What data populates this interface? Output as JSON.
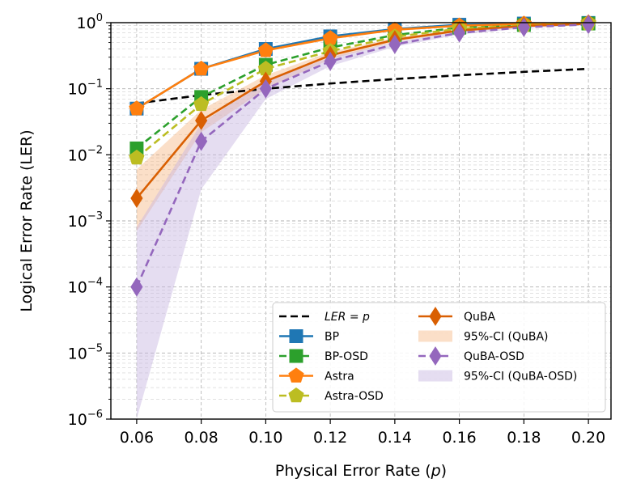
{
  "chart_data": {
    "type": "line",
    "xlabel": "Physical Error Rate (p)",
    "ylabel": "Logical Error Rate (LER)",
    "x": [
      0.06,
      0.08,
      0.1,
      0.12,
      0.14,
      0.16,
      0.18,
      0.2
    ],
    "x_tick_labels": [
      "0.06",
      "0.08",
      "0.10",
      "0.12",
      "0.14",
      "0.16",
      "0.18",
      "0.20"
    ],
    "xlim": [
      0.052,
      0.207
    ],
    "ylim": [
      1e-06,
      1
    ],
    "yscale": "log",
    "y_tick_labels": [
      {
        "base": "10",
        "exp": "−6",
        "value": 1e-06
      },
      {
        "base": "10",
        "exp": "−5",
        "value": 1e-05
      },
      {
        "base": "10",
        "exp": "−4",
        "value": 0.0001
      },
      {
        "base": "10",
        "exp": "−3",
        "value": 0.001
      },
      {
        "base": "10",
        "exp": "−2",
        "value": 0.01
      },
      {
        "base": "10",
        "exp": "−1",
        "value": 0.1
      },
      {
        "base": "10",
        "exp": "0",
        "value": 1
      }
    ],
    "grid": true,
    "legend_position": "lower-right",
    "series": [
      {
        "name": "LER = p",
        "legend_label": "LER = p",
        "italic": true,
        "color": "#000000",
        "dash": "dashed",
        "marker": "none",
        "values": [
          0.06,
          0.08,
          0.1,
          0.12,
          0.14,
          0.16,
          0.18,
          0.2
        ]
      },
      {
        "name": "BP",
        "legend_label": "BP",
        "color": "#1f77b4",
        "dash": "solid",
        "marker": "square",
        "values": [
          0.05,
          0.2,
          0.4,
          0.62,
          0.8,
          0.93,
          0.97,
          0.99
        ]
      },
      {
        "name": "BP-OSD",
        "legend_label": "BP-OSD",
        "color": "#2ca02c",
        "dash": "dashed",
        "marker": "square",
        "values": [
          0.0125,
          0.075,
          0.23,
          0.42,
          0.65,
          0.84,
          0.92,
          0.97
        ]
      },
      {
        "name": "Astra",
        "legend_label": "Astra",
        "color": "#ff7f0e",
        "dash": "solid",
        "marker": "pentagon",
        "values": [
          0.05,
          0.2,
          0.38,
          0.58,
          0.78,
          0.9,
          0.96,
          0.99
        ]
      },
      {
        "name": "Astra-OSD",
        "legend_label": "Astra-OSD",
        "color": "#bcbd22",
        "dash": "dashed",
        "marker": "pentagon",
        "values": [
          0.009,
          0.058,
          0.2,
          0.37,
          0.61,
          0.81,
          0.91,
          0.97
        ]
      },
      {
        "name": "QuBA",
        "legend_label": "QuBA",
        "color": "#d95f02",
        "dash": "solid",
        "marker": "diamond",
        "values": [
          0.0022,
          0.033,
          0.13,
          0.32,
          0.55,
          0.76,
          0.89,
          0.96
        ]
      },
      {
        "name": "QuBA-OSD",
        "legend_label": "QuBA-OSD",
        "color": "#9467bd",
        "dash": "dashed",
        "marker": "diamond",
        "values": [
          0.0001,
          0.016,
          0.1,
          0.26,
          0.47,
          0.7,
          0.85,
          0.94
        ]
      }
    ],
    "bands": [
      {
        "name": "95%-CI (QuBA)",
        "legend_label": "95%-CI (QuBA)",
        "color": "#f4a460",
        "opacity": 0.35,
        "lower": [
          0.0007,
          0.022,
          0.1,
          0.28,
          0.51,
          0.73,
          0.87,
          0.95
        ],
        "upper": [
          0.006,
          0.048,
          0.16,
          0.36,
          0.59,
          0.79,
          0.91,
          0.97
        ]
      },
      {
        "name": "95%-CI (QuBA-OSD)",
        "legend_label": "95%-CI (QuBA-OSD)",
        "color": "#c6b4e0",
        "opacity": 0.45,
        "lower": [
          1e-06,
          0.003,
          0.07,
          0.22,
          0.43,
          0.66,
          0.82,
          0.92
        ],
        "upper": [
          0.0008,
          0.03,
          0.13,
          0.3,
          0.51,
          0.74,
          0.88,
          0.96
        ]
      }
    ]
  }
}
